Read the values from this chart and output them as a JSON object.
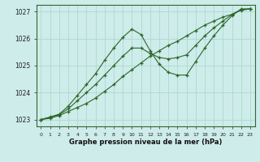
{
  "title": "Graphe pression niveau de la mer (hPa)",
  "bg_color": "#cdecea",
  "grid_color": "#b0d8d0",
  "line_color": "#2d6629",
  "xlim": [
    -0.5,
    23.5
  ],
  "ylim": [
    1022.75,
    1027.25
  ],
  "yticks": [
    1023,
    1024,
    1025,
    1026,
    1027
  ],
  "xticks": [
    0,
    1,
    2,
    3,
    4,
    5,
    6,
    7,
    8,
    9,
    10,
    11,
    12,
    13,
    14,
    15,
    16,
    17,
    18,
    19,
    20,
    21,
    22,
    23
  ],
  "series1_x": [
    0,
    1,
    2,
    3,
    4,
    5,
    6,
    7,
    8,
    9,
    10,
    11,
    12,
    13,
    14,
    15,
    16,
    17,
    18,
    19,
    20,
    21,
    22,
    23
  ],
  "series1_y": [
    1023.0,
    1023.05,
    1023.15,
    1023.3,
    1023.45,
    1023.6,
    1023.8,
    1024.05,
    1024.3,
    1024.6,
    1024.85,
    1025.1,
    1025.35,
    1025.55,
    1025.75,
    1025.9,
    1026.1,
    1026.3,
    1026.5,
    1026.65,
    1026.8,
    1026.9,
    1027.05,
    1027.1
  ],
  "series2_x": [
    0,
    1,
    2,
    3,
    4,
    5,
    6,
    7,
    8,
    9,
    10,
    11,
    12,
    13,
    14,
    15,
    16,
    17,
    18,
    19,
    20,
    21,
    22,
    23
  ],
  "series2_y": [
    1023.0,
    1023.1,
    1023.2,
    1023.5,
    1023.9,
    1024.3,
    1024.7,
    1025.2,
    1025.65,
    1026.05,
    1026.35,
    1026.15,
    1025.55,
    1025.05,
    1024.75,
    1024.65,
    1024.65,
    1025.15,
    1025.65,
    1026.1,
    1026.5,
    1026.85,
    1027.1,
    1027.1
  ],
  "series3_x": [
    0,
    1,
    2,
    3,
    4,
    5,
    6,
    7,
    8,
    9,
    10,
    11,
    12,
    13,
    14,
    15,
    16,
    17,
    18,
    19,
    20,
    21,
    22,
    23
  ],
  "series3_y": [
    1023.0,
    1023.08,
    1023.18,
    1023.4,
    1023.7,
    1024.0,
    1024.3,
    1024.65,
    1025.0,
    1025.35,
    1025.65,
    1025.65,
    1025.45,
    1025.3,
    1025.25,
    1025.3,
    1025.4,
    1025.75,
    1026.1,
    1026.4,
    1026.65,
    1026.9,
    1027.08,
    1027.1
  ]
}
